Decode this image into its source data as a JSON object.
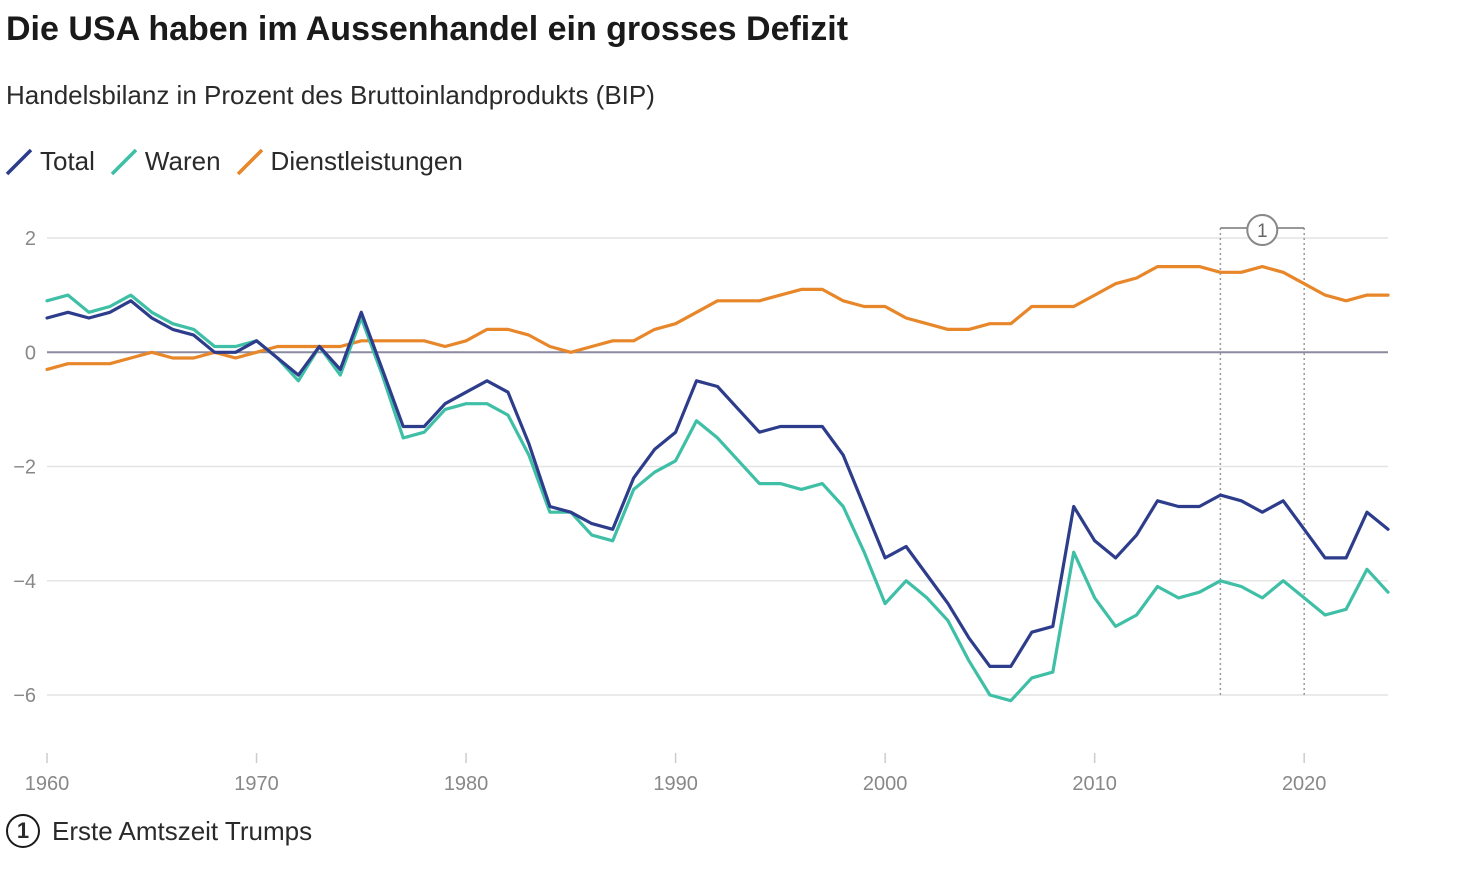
{
  "chart_data": {
    "type": "line",
    "title": "Die USA haben im Aussenhandel ein grosses Defizit",
    "subtitle": "Handelsbilanz in Prozent des Bruttoinlandprodukts (BIP)",
    "xlim": [
      1960,
      2024
    ],
    "ylim": [
      -6.8,
      2.2
    ],
    "x_ticks": [
      1960,
      1970,
      1980,
      1990,
      2000,
      2010,
      2020
    ],
    "y_ticks": [
      2,
      0,
      -2,
      -4,
      -6
    ],
    "y_tick_labels": [
      "2",
      "0",
      "−2",
      "−4",
      "−6"
    ],
    "x": [
      1960,
      1961,
      1962,
      1963,
      1964,
      1965,
      1966,
      1967,
      1968,
      1969,
      1970,
      1971,
      1972,
      1973,
      1974,
      1975,
      1976,
      1977,
      1978,
      1979,
      1980,
      1981,
      1982,
      1983,
      1984,
      1985,
      1986,
      1987,
      1988,
      1989,
      1990,
      1991,
      1992,
      1993,
      1994,
      1995,
      1996,
      1997,
      1998,
      1999,
      2000,
      2001,
      2002,
      2003,
      2004,
      2005,
      2006,
      2007,
      2008,
      2009,
      2010,
      2011,
      2012,
      2013,
      2014,
      2015,
      2016,
      2017,
      2018,
      2019,
      2020,
      2021,
      2022,
      2023,
      2024
    ],
    "series": [
      {
        "name": "Total",
        "color": "#2d3d8c",
        "values": [
          0.6,
          0.7,
          0.6,
          0.7,
          0.9,
          0.6,
          0.4,
          0.3,
          0.0,
          0.0,
          0.2,
          -0.1,
          -0.4,
          0.1,
          -0.3,
          0.7,
          -0.3,
          -1.3,
          -1.3,
          -0.9,
          -0.7,
          -0.5,
          -0.7,
          -1.6,
          -2.7,
          -2.8,
          -3.0,
          -3.1,
          -2.2,
          -1.7,
          -1.4,
          -0.5,
          -0.6,
          -1.0,
          -1.4,
          -1.3,
          -1.3,
          -1.3,
          -1.8,
          -2.7,
          -3.6,
          -3.4,
          -3.9,
          -4.4,
          -5.0,
          -5.5,
          -5.5,
          -4.9,
          -4.8,
          -2.7,
          -3.3,
          -3.6,
          -3.2,
          -2.6,
          -2.7,
          -2.7,
          -2.5,
          -2.6,
          -2.8,
          -2.6,
          -3.1,
          -3.6,
          -3.6,
          -2.8,
          -3.1
        ]
      },
      {
        "name": "Waren",
        "color": "#3ebfa6",
        "values": [
          0.9,
          1.0,
          0.7,
          0.8,
          1.0,
          0.7,
          0.5,
          0.4,
          0.1,
          0.1,
          0.2,
          -0.1,
          -0.5,
          0.1,
          -0.4,
          0.6,
          -0.4,
          -1.5,
          -1.4,
          -1.0,
          -0.9,
          -0.9,
          -1.1,
          -1.8,
          -2.8,
          -2.8,
          -3.2,
          -3.3,
          -2.4,
          -2.1,
          -1.9,
          -1.2,
          -1.5,
          -1.9,
          -2.3,
          -2.3,
          -2.4,
          -2.3,
          -2.7,
          -3.5,
          -4.4,
          -4.0,
          -4.3,
          -4.7,
          -5.4,
          -6.0,
          -6.1,
          -5.7,
          -5.6,
          -3.5,
          -4.3,
          -4.8,
          -4.6,
          -4.1,
          -4.3,
          -4.2,
          -4.0,
          -4.1,
          -4.3,
          -4.0,
          -4.3,
          -4.6,
          -4.5,
          -3.8,
          -4.2
        ]
      },
      {
        "name": "Dienstleistungen",
        "color": "#e8862a",
        "values": [
          -0.3,
          -0.2,
          -0.2,
          -0.2,
          -0.1,
          0.0,
          -0.1,
          -0.1,
          0.0,
          -0.1,
          0.0,
          0.1,
          0.1,
          0.1,
          0.1,
          0.2,
          0.2,
          0.2,
          0.2,
          0.1,
          0.2,
          0.4,
          0.4,
          0.3,
          0.1,
          0.0,
          0.1,
          0.2,
          0.2,
          0.4,
          0.5,
          0.7,
          0.9,
          0.9,
          0.9,
          1.0,
          1.1,
          1.1,
          0.9,
          0.8,
          0.8,
          0.6,
          0.5,
          0.4,
          0.4,
          0.5,
          0.5,
          0.8,
          0.8,
          0.8,
          1.0,
          1.2,
          1.3,
          1.5,
          1.5,
          1.5,
          1.4,
          1.4,
          1.5,
          1.4,
          1.2,
          1.0,
          0.9,
          1.0,
          1.0
        ]
      }
    ],
    "annotation": {
      "number": "1",
      "label": "Erste Amtszeit Trumps",
      "x_start": 2016,
      "x_end": 2020
    },
    "zero_line": true,
    "grid": "horizontal"
  }
}
